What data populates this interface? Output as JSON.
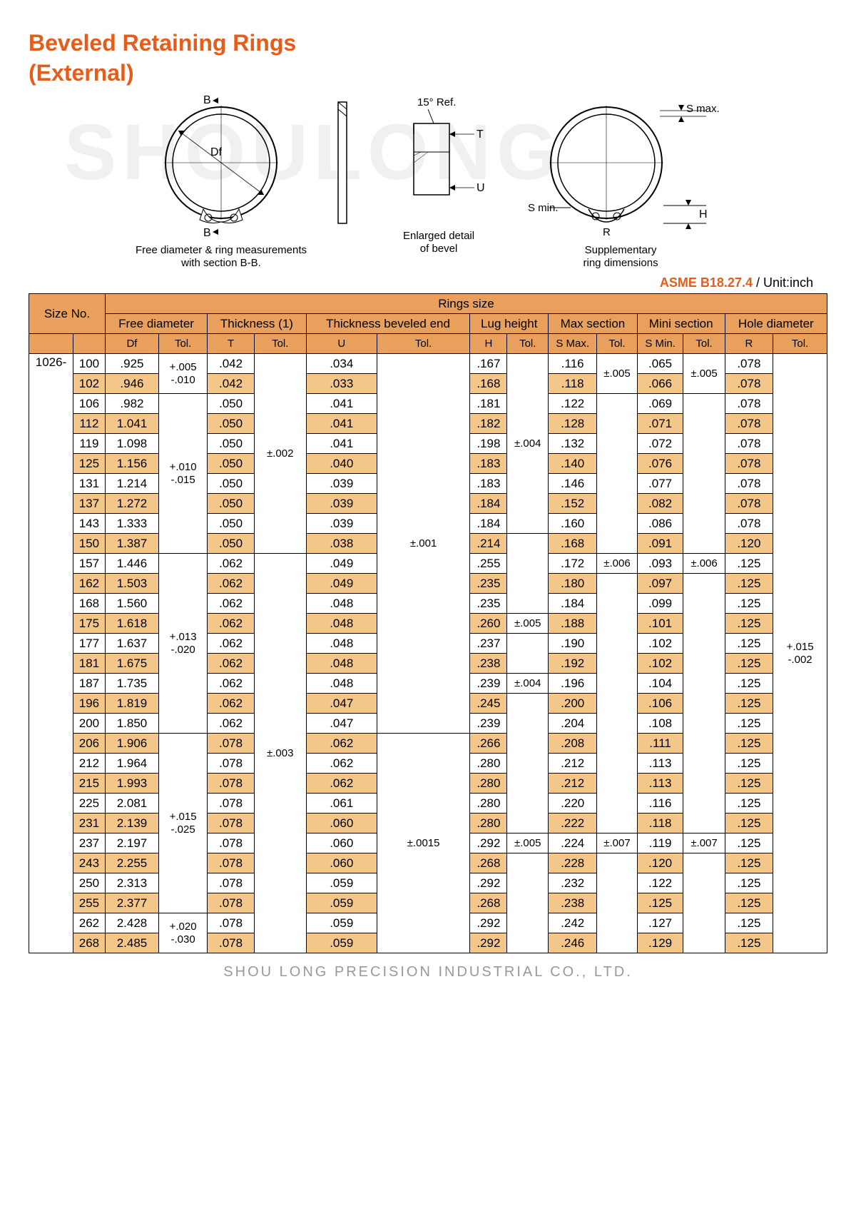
{
  "title_line1": "Beveled Retaining Rings",
  "title_line2": "(External)",
  "watermark": "SHOULONG",
  "diagrams": {
    "left_caption": "Free diameter & ring measurements\nwith section B-B.",
    "mid_caption": "Enlarged detail\nof bevel",
    "right_caption": "Supplementary\nring dimensions",
    "angle": "15° Ref.",
    "labels": {
      "B": "B",
      "Df": "Df",
      "T": "T",
      "U": "U",
      "Smax": "S max.",
      "Smin": "S min.",
      "H": "H",
      "R": "R"
    }
  },
  "spec": {
    "standard": "ASME B18.27.4",
    "unit": " / Unit:inch"
  },
  "headers": {
    "size_no": "Size No.",
    "rings_size": "Rings size",
    "groups": [
      "Free diameter",
      "Thickness (1)",
      "Thickness beveled end",
      "Lug height",
      "Max section",
      "Mini section",
      "Hole diameter"
    ],
    "sub": [
      "Df",
      "Tol.",
      "T",
      "Tol.",
      "U",
      "Tol.",
      "H",
      "Tol.",
      "S Max.",
      "Tol.",
      "S Min.",
      "Tol.",
      "R",
      "Tol."
    ]
  },
  "prefix": "1026-",
  "rows": [
    {
      "n": "100",
      "df": ".925",
      "t": ".042",
      "u": ".034",
      "h": ".167",
      "smax": ".116",
      "smin": ".065",
      "r": ".078"
    },
    {
      "n": "102",
      "df": ".946",
      "t": ".042",
      "u": ".033",
      "h": ".168",
      "smax": ".118",
      "smin": ".066",
      "r": ".078"
    },
    {
      "n": "106",
      "df": ".982",
      "t": ".050",
      "u": ".041",
      "h": ".181",
      "smax": ".122",
      "smin": ".069",
      "r": ".078"
    },
    {
      "n": "112",
      "df": "1.041",
      "t": ".050",
      "u": ".041",
      "h": ".182",
      "smax": ".128",
      "smin": ".071",
      "r": ".078"
    },
    {
      "n": "119",
      "df": "1.098",
      "t": ".050",
      "u": ".041",
      "h": ".198",
      "smax": ".132",
      "smin": ".072",
      "r": ".078"
    },
    {
      "n": "125",
      "df": "1.156",
      "t": ".050",
      "u": ".040",
      "h": ".183",
      "smax": ".140",
      "smin": ".076",
      "r": ".078"
    },
    {
      "n": "131",
      "df": "1.214",
      "t": ".050",
      "u": ".039",
      "h": ".183",
      "smax": ".146",
      "smin": ".077",
      "r": ".078"
    },
    {
      "n": "137",
      "df": "1.272",
      "t": ".050",
      "u": ".039",
      "h": ".184",
      "smax": ".152",
      "smin": ".082",
      "r": ".078"
    },
    {
      "n": "143",
      "df": "1.333",
      "t": ".050",
      "u": ".039",
      "h": ".184",
      "smax": ".160",
      "smin": ".086",
      "r": ".078"
    },
    {
      "n": "150",
      "df": "1.387",
      "t": ".050",
      "u": ".038",
      "h": ".214",
      "smax": ".168",
      "smin": ".091",
      "r": ".120"
    },
    {
      "n": "157",
      "df": "1.446",
      "t": ".062",
      "u": ".049",
      "h": ".255",
      "smax": ".172",
      "smin": ".093",
      "r": ".125"
    },
    {
      "n": "162",
      "df": "1.503",
      "t": ".062",
      "u": ".049",
      "h": ".235",
      "smax": ".180",
      "smin": ".097",
      "r": ".125"
    },
    {
      "n": "168",
      "df": "1.560",
      "t": ".062",
      "u": ".048",
      "h": ".235",
      "smax": ".184",
      "smin": ".099",
      "r": ".125"
    },
    {
      "n": "175",
      "df": "1.618",
      "t": ".062",
      "u": ".048",
      "h": ".260",
      "smax": ".188",
      "smin": ".101",
      "r": ".125"
    },
    {
      "n": "177",
      "df": "1.637",
      "t": ".062",
      "u": ".048",
      "h": ".237",
      "smax": ".190",
      "smin": ".102",
      "r": ".125"
    },
    {
      "n": "181",
      "df": "1.675",
      "t": ".062",
      "u": ".048",
      "h": ".238",
      "smax": ".192",
      "smin": ".102",
      "r": ".125"
    },
    {
      "n": "187",
      "df": "1.735",
      "t": ".062",
      "u": ".048",
      "h": ".239",
      "smax": ".196",
      "smin": ".104",
      "r": ".125"
    },
    {
      "n": "196",
      "df": "1.819",
      "t": ".062",
      "u": ".047",
      "h": ".245",
      "smax": ".200",
      "smin": ".106",
      "r": ".125"
    },
    {
      "n": "200",
      "df": "1.850",
      "t": ".062",
      "u": ".047",
      "h": ".239",
      "smax": ".204",
      "smin": ".108",
      "r": ".125"
    },
    {
      "n": "206",
      "df": "1.906",
      "t": ".078",
      "u": ".062",
      "h": ".266",
      "smax": ".208",
      "smin": ".111",
      "r": ".125"
    },
    {
      "n": "212",
      "df": "1.964",
      "t": ".078",
      "u": ".062",
      "h": ".280",
      "smax": ".212",
      "smin": ".113",
      "r": ".125"
    },
    {
      "n": "215",
      "df": "1.993",
      "t": ".078",
      "u": ".062",
      "h": ".280",
      "smax": ".212",
      "smin": ".113",
      "r": ".125"
    },
    {
      "n": "225",
      "df": "2.081",
      "t": ".078",
      "u": ".061",
      "h": ".280",
      "smax": ".220",
      "smin": ".116",
      "r": ".125"
    },
    {
      "n": "231",
      "df": "2.139",
      "t": ".078",
      "u": ".060",
      "h": ".280",
      "smax": ".222",
      "smin": ".118",
      "r": ".125"
    },
    {
      "n": "237",
      "df": "2.197",
      "t": ".078",
      "u": ".060",
      "h": ".292",
      "smax": ".224",
      "smin": ".119",
      "r": ".125"
    },
    {
      "n": "243",
      "df": "2.255",
      "t": ".078",
      "u": ".060",
      "h": ".268",
      "smax": ".228",
      "smin": ".120",
      "r": ".125"
    },
    {
      "n": "250",
      "df": "2.313",
      "t": ".078",
      "u": ".059",
      "h": ".292",
      "smax": ".232",
      "smin": ".122",
      "r": ".125"
    },
    {
      "n": "255",
      "df": "2.377",
      "t": ".078",
      "u": ".059",
      "h": ".268",
      "smax": ".238",
      "smin": ".125",
      "r": ".125"
    },
    {
      "n": "262",
      "df": "2.428",
      "t": ".078",
      "u": ".059",
      "h": ".292",
      "smax": ".242",
      "smin": ".127",
      "r": ".125"
    },
    {
      "n": "268",
      "df": "2.485",
      "t": ".078",
      "u": ".059",
      "h": ".292",
      "smax": ".246",
      "smin": ".129",
      "r": ".125"
    }
  ],
  "tols": {
    "df": [
      {
        "span": 2,
        "txt": "+.005\n-.010"
      },
      {
        "span": 8,
        "txt": "+.010\n-.015"
      },
      {
        "span": 9,
        "txt": "+.013\n-.020"
      },
      {
        "span": 9,
        "txt": "+.015\n-.025"
      },
      {
        "span": 2,
        "txt": "+.020\n-.030"
      }
    ],
    "t": [
      {
        "span": 10,
        "txt": "±.002"
      },
      {
        "span": 20,
        "txt": "±.003"
      }
    ],
    "u": [
      {
        "span": 19,
        "txt": "±.001"
      },
      {
        "span": 11,
        "txt": "±.0015"
      }
    ],
    "h": [
      {
        "span": 9,
        "txt": "±.004"
      },
      {
        "span": 4,
        "txt": ""
      },
      {
        "span": 1,
        "txt": "±.005"
      },
      {
        "span": 2,
        "txt": ""
      },
      {
        "span": 1,
        "txt": "±.004"
      },
      {
        "span": 7,
        "txt": ""
      },
      {
        "span": 1,
        "txt": "±.005"
      },
      {
        "span": 5,
        "txt": ""
      }
    ],
    "smax": [
      {
        "span": 2,
        "txt": "±.005"
      },
      {
        "span": 8,
        "txt": ""
      },
      {
        "span": 1,
        "txt": "±.006"
      },
      {
        "span": 13,
        "txt": ""
      },
      {
        "span": 1,
        "txt": "±.007"
      },
      {
        "span": 5,
        "txt": ""
      }
    ],
    "smin": [
      {
        "span": 2,
        "txt": "±.005"
      },
      {
        "span": 8,
        "txt": ""
      },
      {
        "span": 1,
        "txt": "±.006"
      },
      {
        "span": 13,
        "txt": ""
      },
      {
        "span": 1,
        "txt": "±.007"
      },
      {
        "span": 5,
        "txt": ""
      }
    ],
    "r": [
      {
        "span": 30,
        "txt": "+.015\n-.002"
      }
    ]
  },
  "footer": "SHOU LONG PRECISION INDUSTRIAL CO., LTD.",
  "colors": {
    "accent": "#e65c1a",
    "header_bg": "#e8a05c",
    "row_alt_bg": "#f5c68a",
    "border": "#000000",
    "watermark": "#f0f0f0",
    "footer": "#999999"
  }
}
